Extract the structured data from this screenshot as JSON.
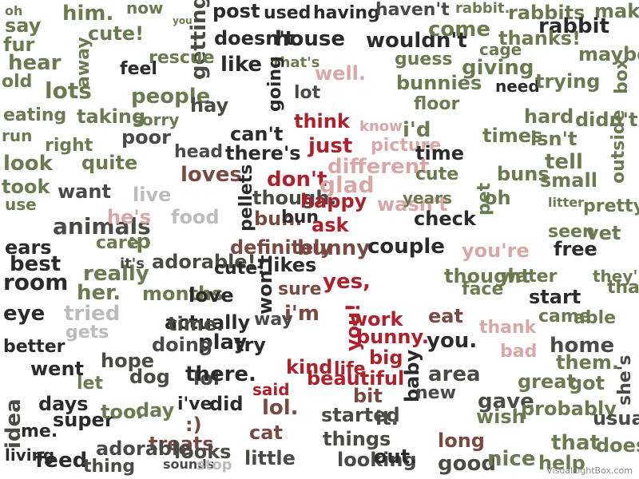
{
  "palette": {
    "olive": "#6b7a4f",
    "dark": "#2b2b2b",
    "darkgray": "#4a4a46",
    "red": "#b0202a",
    "brown": "#7a4a40",
    "pink": "#d9a8a6",
    "lightgray": "#bcbcbc"
  },
  "credit": "VisualLightBox.com",
  "words": [
    "oh",
    "say",
    "him.",
    "now",
    "post",
    "used",
    "having",
    "haven't",
    "rabbit.",
    "rabbits",
    "make",
    "you",
    "cute!",
    "getting",
    "doesn't",
    "house",
    "wouldn't",
    "come",
    "rabbit",
    "thanks!",
    "cage",
    "fur",
    "hear",
    "away",
    "feel",
    "rescue",
    "like",
    "that's",
    "guess",
    "giving",
    "maybe",
    "old",
    "lots",
    "people",
    "hay",
    "going",
    "well.",
    "lot",
    "bunnies",
    "need",
    "trying",
    "box",
    "eating",
    "taking",
    "sorry",
    "think",
    "floor",
    "hard",
    "didn't",
    "run",
    "right",
    "poor",
    "can't",
    "know",
    "i'd",
    "times",
    "isn't",
    "look",
    "quite",
    "head",
    "there's",
    "just",
    "picture",
    "time",
    "pet",
    "buns",
    "outside",
    "tell",
    "took",
    "want",
    "loves",
    "don't",
    "different",
    "glad",
    "cute",
    "small",
    "live",
    "though.",
    "happy",
    "bun.",
    "wasn't",
    "years",
    "oh",
    "use",
    "animals",
    "he's",
    "food",
    "pellets",
    "bun",
    "ask",
    "check",
    "pretty",
    "litter",
    "ears",
    "care",
    ":p",
    "definitely",
    "bunny",
    "couple",
    "you're",
    "seen",
    "vet",
    "best",
    "adorable!",
    "cute!",
    "likes",
    "free",
    "room",
    "really",
    "it's",
    "yes,",
    "thought",
    "water",
    "they're",
    "her.",
    "months",
    "love",
    "won't",
    "sure",
    "face",
    "start",
    "thanks",
    "eye",
    "tried",
    "actually",
    "i'm",
    "work",
    "eat",
    "thank",
    "came",
    "able",
    "better",
    "gets",
    "time.",
    "play",
    "way",
    "bunny.",
    "you.",
    "home",
    "doing",
    "try",
    "you!",
    "big",
    "bad",
    "them.",
    "went",
    "dog",
    "kind",
    "life",
    "area",
    "hope",
    "lol",
    "there.",
    "beautiful",
    "bit",
    "baby",
    "got",
    "great",
    "days",
    "let",
    "did",
    "said",
    "lol.",
    "new",
    "gave",
    "she's",
    "idea",
    "super",
    "too.",
    "day",
    "i've",
    ":)",
    "started",
    "it.",
    "probably",
    "usually",
    "me.",
    "treats",
    "cat",
    "things",
    "long",
    "wish",
    "that",
    "does",
    "living",
    "feed",
    "thing",
    "adorable",
    "looks",
    "little",
    "looking",
    "out.",
    "good",
    "nice",
    "help",
    "sounds",
    "stop",
    "watch"
  ]
}
